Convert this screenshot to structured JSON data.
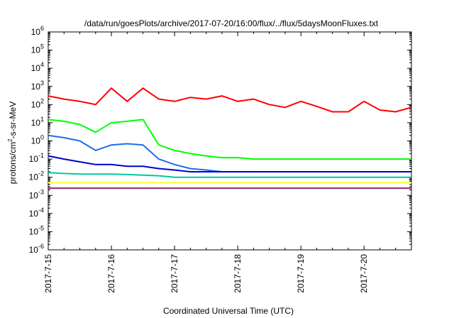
{
  "chart_data": {
    "type": "line",
    "title": "/data/run/goesPlots/archive/2017-07-20/16:00/flux/../flux/5daysMoonFluxes.txt",
    "xlabel": "Coordinated Universal Time (UTC)",
    "ylabel": "protons/cm²-s-sr-MeV",
    "ylabel_parts": {
      "pre": "protons/cm",
      "sup": "2",
      "post": "-s-sr-MeV"
    },
    "yscale": "log",
    "ylim": [
      -6,
      6
    ],
    "y_ticks": [
      {
        "exp": -6,
        "base": "10",
        "sup": "-6"
      },
      {
        "exp": -5,
        "base": "10",
        "sup": "-5"
      },
      {
        "exp": -4,
        "base": "10",
        "sup": "-4"
      },
      {
        "exp": -3,
        "base": "10",
        "sup": "-3"
      },
      {
        "exp": -2,
        "base": "10",
        "sup": "-2"
      },
      {
        "exp": -1,
        "base": "10",
        "sup": "-1"
      },
      {
        "exp": 0,
        "base": "10",
        "sup": "0"
      },
      {
        "exp": 1,
        "base": "10",
        "sup": "1"
      },
      {
        "exp": 2,
        "base": "10",
        "sup": "2"
      },
      {
        "exp": 3,
        "base": "10",
        "sup": "3"
      },
      {
        "exp": 4,
        "base": "10",
        "sup": "4"
      },
      {
        "exp": 5,
        "base": "10",
        "sup": "5"
      },
      {
        "exp": 6,
        "base": "10",
        "sup": "6"
      }
    ],
    "xlim": [
      "2017-07-15",
      "2017-07-20 18:00"
    ],
    "x_ticks": [
      {
        "date": "2017-07-15",
        "label": "2017-7-15"
      },
      {
        "date": "2017-07-16",
        "label": "2017-7-16"
      },
      {
        "date": "2017-07-17",
        "label": "2017-7-17"
      },
      {
        "date": "2017-07-18",
        "label": "2017-7-18"
      },
      {
        "date": "2017-07-19",
        "label": "2017-7-19"
      },
      {
        "date": "2017-07-20",
        "label": "2017-7-20"
      }
    ],
    "grid": false,
    "legend": "none",
    "series": [
      {
        "color": "#ff0000",
        "x": [
          "2017-07-15 00:00",
          "2017-07-15 06:00",
          "2017-07-15 12:00",
          "2017-07-15 18:00",
          "2017-07-16 00:00",
          "2017-07-16 06:00",
          "2017-07-16 12:00",
          "2017-07-16 18:00",
          "2017-07-17 00:00",
          "2017-07-17 06:00",
          "2017-07-17 12:00",
          "2017-07-17 18:00",
          "2017-07-18 00:00",
          "2017-07-18 06:00",
          "2017-07-18 12:00",
          "2017-07-18 18:00",
          "2017-07-19 00:00",
          "2017-07-19 06:00",
          "2017-07-19 12:00",
          "2017-07-19 18:00",
          "2017-07-20 00:00",
          "2017-07-20 06:00",
          "2017-07-20 12:00",
          "2017-07-20 18:00"
        ],
        "y": [
          300,
          200,
          150,
          100,
          800,
          150,
          800,
          200,
          150,
          250,
          200,
          300,
          150,
          200,
          100,
          70,
          150,
          80,
          40,
          40,
          150,
          50,
          40,
          70
        ]
      },
      {
        "color": "#00ff00",
        "x": [
          "2017-07-15 00:00",
          "2017-07-15 06:00",
          "2017-07-15 12:00",
          "2017-07-15 18:00",
          "2017-07-16 00:00",
          "2017-07-16 06:00",
          "2017-07-16 12:00",
          "2017-07-16 18:00",
          "2017-07-17 00:00",
          "2017-07-17 06:00",
          "2017-07-17 12:00",
          "2017-07-17 18:00",
          "2017-07-18 00:00",
          "2017-07-18 06:00",
          "2017-07-18 12:00",
          "2017-07-18 18:00",
          "2017-07-19 00:00",
          "2017-07-19 06:00",
          "2017-07-19 12:00",
          "2017-07-19 18:00",
          "2017-07-20 00:00",
          "2017-07-20 06:00",
          "2017-07-20 12:00",
          "2017-07-20 18:00"
        ],
        "y": [
          15,
          12,
          8,
          3,
          10,
          12,
          15,
          0.6,
          0.3,
          0.2,
          0.15,
          0.12,
          0.12,
          0.1,
          0.1,
          0.1,
          0.1,
          0.1,
          0.1,
          0.1,
          0.1,
          0.1,
          0.1,
          0.1
        ]
      },
      {
        "color": "#1e6ee6",
        "x": [
          "2017-07-15 00:00",
          "2017-07-15 06:00",
          "2017-07-15 12:00",
          "2017-07-15 18:00",
          "2017-07-16 00:00",
          "2017-07-16 06:00",
          "2017-07-16 12:00",
          "2017-07-16 18:00",
          "2017-07-17 00:00",
          "2017-07-17 06:00",
          "2017-07-17 12:00",
          "2017-07-17 18:00",
          "2017-07-18 00:00",
          "2017-07-18 06:00",
          "2017-07-18 12:00",
          "2017-07-18 18:00",
          "2017-07-19 00:00",
          "2017-07-19 06:00",
          "2017-07-19 12:00",
          "2017-07-19 18:00",
          "2017-07-20 00:00",
          "2017-07-20 06:00",
          "2017-07-20 12:00",
          "2017-07-20 18:00"
        ],
        "y": [
          2,
          1.5,
          1,
          0.3,
          0.6,
          0.7,
          0.6,
          0.1,
          0.05,
          0.03,
          0.025,
          0.02,
          0.02,
          0.02,
          0.02,
          0.02,
          0.02,
          0.02,
          0.02,
          0.02,
          0.02,
          0.02,
          0.02,
          0.02
        ]
      },
      {
        "color": "#0000cc",
        "x": [
          "2017-07-15 00:00",
          "2017-07-15 06:00",
          "2017-07-15 12:00",
          "2017-07-15 18:00",
          "2017-07-16 00:00",
          "2017-07-16 06:00",
          "2017-07-16 12:00",
          "2017-07-16 18:00",
          "2017-07-17 00:00",
          "2017-07-17 06:00",
          "2017-07-17 12:00",
          "2017-07-17 18:00",
          "2017-07-18 00:00",
          "2017-07-18 06:00",
          "2017-07-18 12:00",
          "2017-07-18 18:00",
          "2017-07-19 00:00",
          "2017-07-19 06:00",
          "2017-07-19 12:00",
          "2017-07-19 18:00",
          "2017-07-20 00:00",
          "2017-07-20 06:00",
          "2017-07-20 12:00",
          "2017-07-20 18:00"
        ],
        "y": [
          0.15,
          0.1,
          0.07,
          0.05,
          0.05,
          0.04,
          0.04,
          0.03,
          0.025,
          0.02,
          0.02,
          0.02,
          0.02,
          0.02,
          0.02,
          0.02,
          0.02,
          0.02,
          0.02,
          0.02,
          0.02,
          0.02,
          0.02,
          0.02
        ]
      },
      {
        "color": "#00c8a0",
        "x": [
          "2017-07-15 00:00",
          "2017-07-15 06:00",
          "2017-07-15 12:00",
          "2017-07-15 18:00",
          "2017-07-16 00:00",
          "2017-07-16 06:00",
          "2017-07-16 12:00",
          "2017-07-16 18:00",
          "2017-07-17 00:00",
          "2017-07-17 06:00",
          "2017-07-17 12:00",
          "2017-07-17 18:00",
          "2017-07-18 00:00",
          "2017-07-18 06:00",
          "2017-07-18 12:00",
          "2017-07-18 18:00",
          "2017-07-19 00:00",
          "2017-07-19 06:00",
          "2017-07-19 12:00",
          "2017-07-19 18:00",
          "2017-07-20 00:00",
          "2017-07-20 06:00",
          "2017-07-20 12:00",
          "2017-07-20 18:00"
        ],
        "y": [
          0.018,
          0.016,
          0.015,
          0.015,
          0.015,
          0.014,
          0.013,
          0.012,
          0.01,
          0.01,
          0.01,
          0.01,
          0.01,
          0.01,
          0.01,
          0.01,
          0.01,
          0.01,
          0.01,
          0.01,
          0.01,
          0.01,
          0.01,
          0.01
        ]
      },
      {
        "color": "#ffff33",
        "x": [
          "2017-07-15 00:00",
          "2017-07-15 06:00",
          "2017-07-15 12:00",
          "2017-07-15 18:00",
          "2017-07-16 00:00",
          "2017-07-16 06:00",
          "2017-07-16 12:00",
          "2017-07-16 18:00",
          "2017-07-17 00:00",
          "2017-07-17 06:00",
          "2017-07-17 12:00",
          "2017-07-17 18:00",
          "2017-07-18 00:00",
          "2017-07-18 06:00",
          "2017-07-18 12:00",
          "2017-07-18 18:00",
          "2017-07-19 00:00",
          "2017-07-19 06:00",
          "2017-07-19 12:00",
          "2017-07-19 18:00",
          "2017-07-20 00:00",
          "2017-07-20 06:00",
          "2017-07-20 12:00",
          "2017-07-20 18:00"
        ],
        "y": [
          0.005,
          0.005,
          0.005,
          0.005,
          0.005,
          0.005,
          0.005,
          0.005,
          0.005,
          0.005,
          0.005,
          0.005,
          0.005,
          0.005,
          0.005,
          0.005,
          0.005,
          0.005,
          0.005,
          0.005,
          0.005,
          0.005,
          0.005,
          0.005
        ]
      },
      {
        "color": "#8b2c6e",
        "x": [
          "2017-07-15 00:00",
          "2017-07-15 06:00",
          "2017-07-15 12:00",
          "2017-07-15 18:00",
          "2017-07-16 00:00",
          "2017-07-16 06:00",
          "2017-07-16 12:00",
          "2017-07-16 18:00",
          "2017-07-17 00:00",
          "2017-07-17 06:00",
          "2017-07-17 12:00",
          "2017-07-17 18:00",
          "2017-07-18 00:00",
          "2017-07-18 06:00",
          "2017-07-18 12:00",
          "2017-07-18 18:00",
          "2017-07-19 00:00",
          "2017-07-19 06:00",
          "2017-07-19 12:00",
          "2017-07-19 18:00",
          "2017-07-20 00:00",
          "2017-07-20 06:00",
          "2017-07-20 12:00",
          "2017-07-20 18:00"
        ],
        "y": [
          0.0025,
          0.0025,
          0.0025,
          0.0025,
          0.0025,
          0.0025,
          0.0025,
          0.0025,
          0.0025,
          0.0025,
          0.0025,
          0.0025,
          0.0025,
          0.0025,
          0.0025,
          0.0025,
          0.0025,
          0.0025,
          0.0025,
          0.0025,
          0.0025,
          0.0025,
          0.0025,
          0.0025
        ]
      }
    ]
  }
}
